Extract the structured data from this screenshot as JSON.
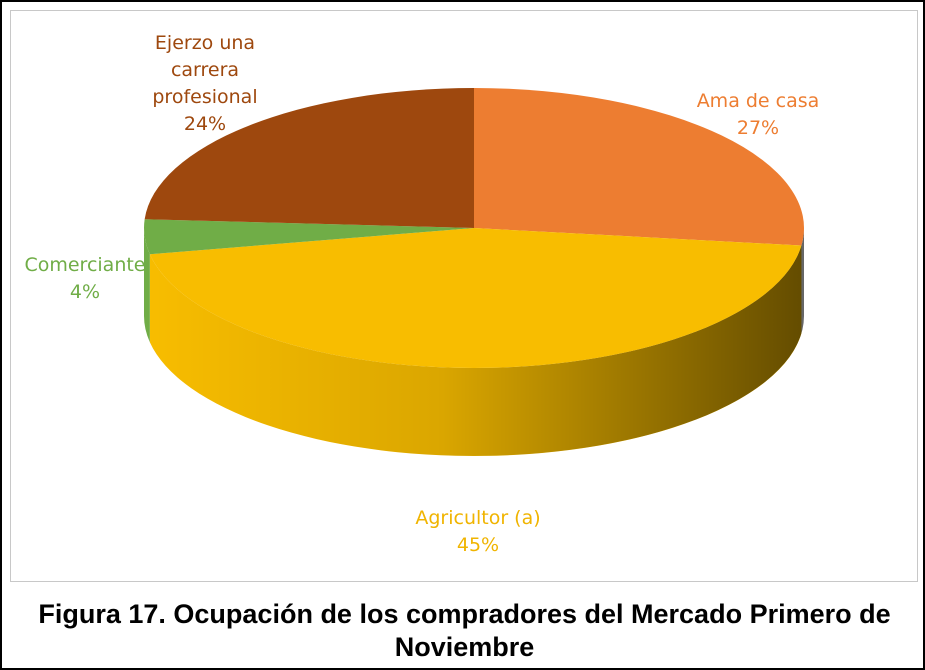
{
  "chart_data": {
    "type": "pie",
    "caption": "Figura 17. Ocupación de los compradores del Mercado Primero de Noviembre",
    "categories": [
      "Ama de casa",
      "Agricultor (a)",
      "Comerciante",
      "Ejerzo una carrera profesional"
    ],
    "values": [
      27,
      45,
      4,
      24
    ],
    "value_labels": [
      "27%",
      "45%",
      "4%",
      "24%"
    ],
    "colors": [
      "#ed7d31",
      "#f8bd00",
      "#70ad47",
      "#9e480e"
    ],
    "label_colors": [
      "#ed7d31",
      "#f0b400",
      "#70ad47",
      "#9e480e"
    ]
  }
}
